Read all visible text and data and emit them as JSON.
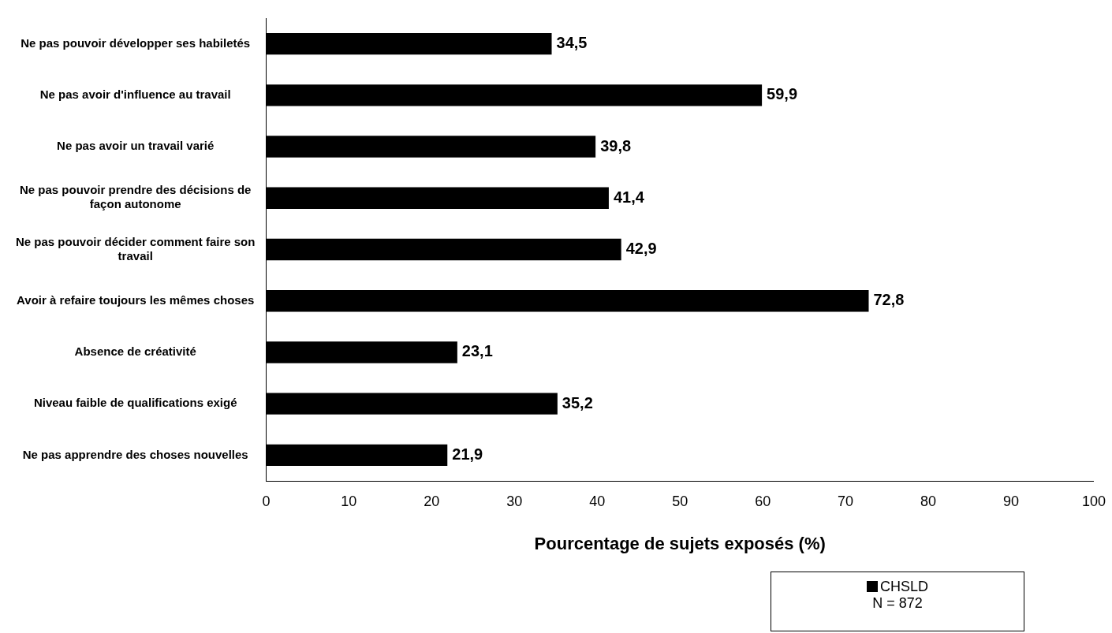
{
  "chart_data": {
    "type": "bar",
    "orientation": "horizontal",
    "xlabel": "Pourcentage de sujets exposés (%)",
    "categories": [
      "Ne pas pouvoir développer ses habiletés",
      "Ne pas avoir d'influence au travail",
      "Ne pas avoir un travail varié",
      "Ne pas pouvoir prendre des décisions de façon autonome",
      "Ne pas pouvoir décider comment faire son travail",
      "Avoir à refaire toujours les mêmes choses",
      "Absence de créativité",
      "Niveau faible de qualifications exigé",
      "Ne pas apprendre des choses nouvelles"
    ],
    "series": [
      {
        "name": "CHSLD",
        "color": "#000000",
        "values": [
          34.5,
          59.9,
          39.8,
          41.4,
          42.9,
          72.8,
          23.1,
          35.2,
          21.9
        ],
        "value_labels": [
          "34,5",
          "59,9",
          "39,8",
          "41,4",
          "42,9",
          "72,8",
          "23,1",
          "35,2",
          "21,9"
        ]
      }
    ],
    "xlim": [
      0,
      100
    ],
    "xticks": [
      0,
      10,
      20,
      30,
      40,
      50,
      60,
      70,
      80,
      90,
      100
    ],
    "grid": false,
    "legend": "bottom right",
    "annotations": [
      "N = 872"
    ]
  }
}
